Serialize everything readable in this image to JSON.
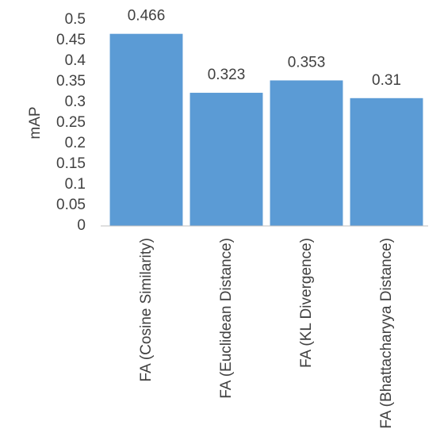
{
  "chart_data": {
    "type": "bar",
    "y_label": "mAP",
    "categories": [
      "FA (Cosine Similarity)",
      "FA (Euclidean Distance)",
      "FA (KL Divergence)",
      "FA (Bhattacharyya Distance)"
    ],
    "values": [
      0.466,
      0.323,
      0.353,
      0.31
    ],
    "color": "#5b9bd5",
    "ylim": [
      0,
      0.5
    ],
    "yticks": [
      0,
      0.05,
      0.1,
      0.15,
      0.2,
      0.25,
      0.3,
      0.35,
      0.4,
      0.45,
      0.5
    ],
    "grid": false
  }
}
